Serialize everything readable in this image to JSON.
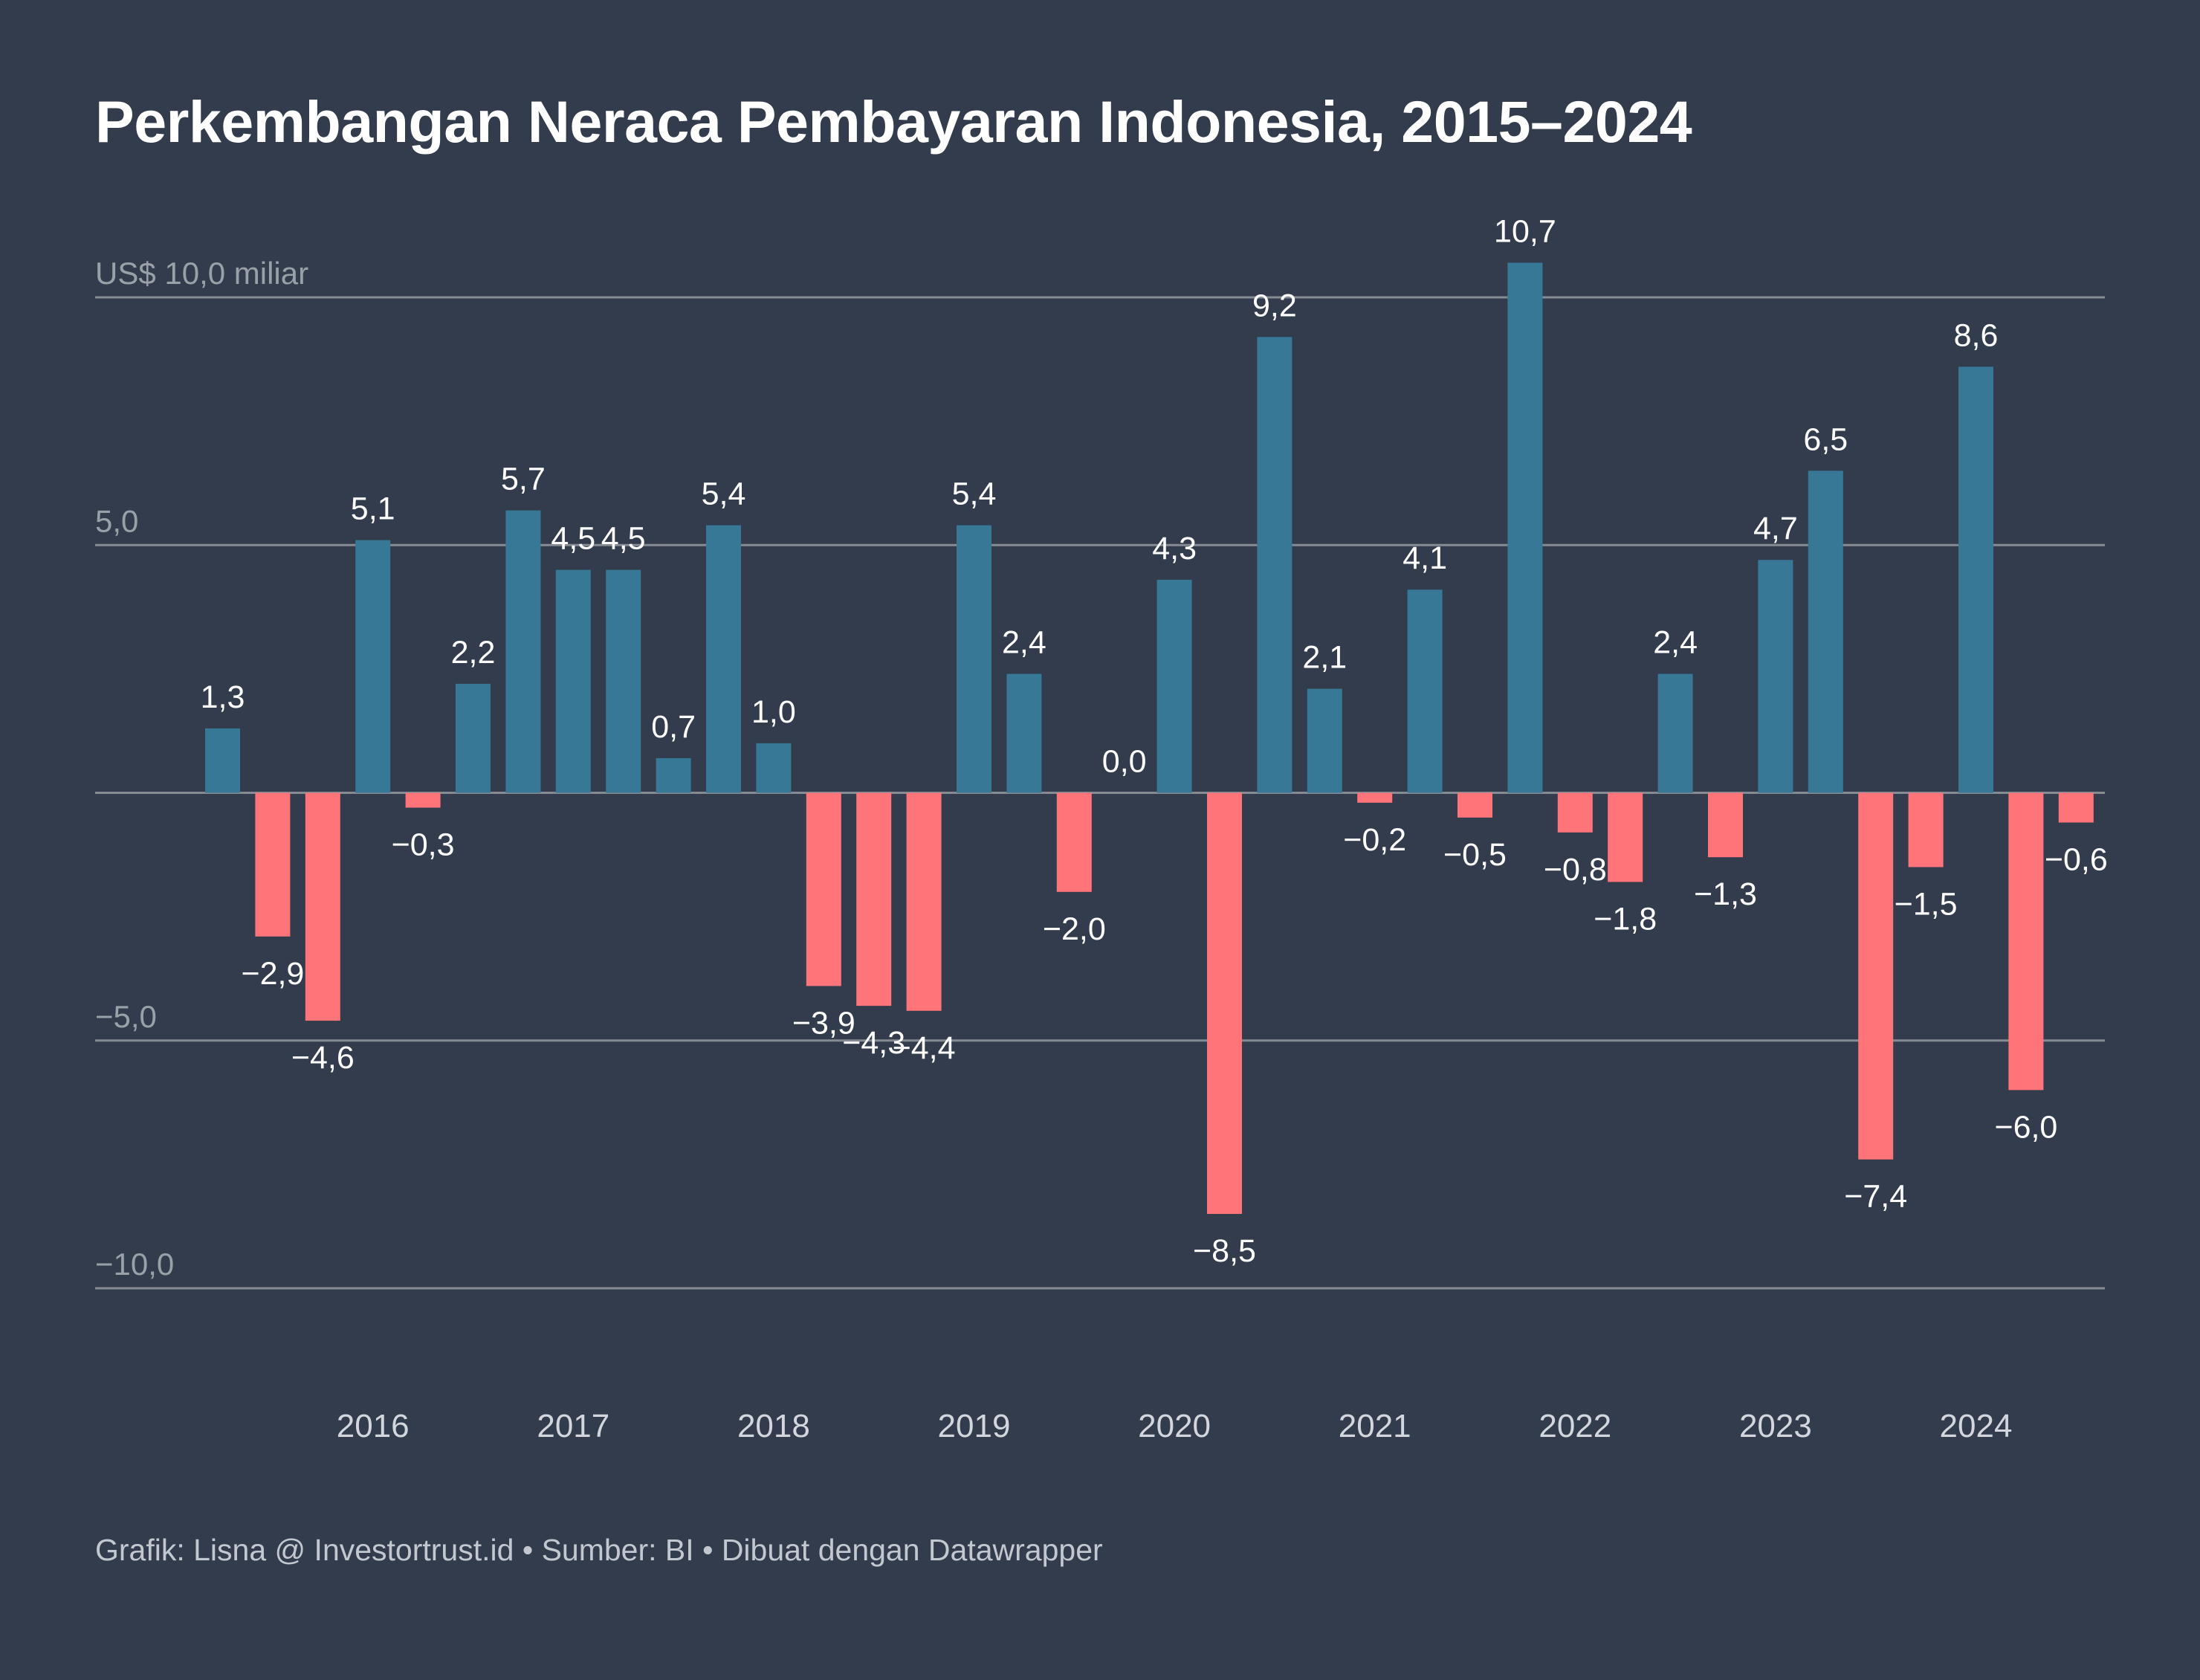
{
  "title": "Perkembangan Neraca Pembayaran Indonesia, 2015–2024",
  "footer": {
    "credit": "Grafik: Lisna @ Investortrust.id",
    "source": "Sumber: BI",
    "tool": "Dibuat dengan Datawrapper",
    "separator": " • "
  },
  "colors": {
    "background": "#323c4d",
    "positive": "#367895",
    "negative": "#ff7479",
    "gridline": "#868b93",
    "axis_text": "#9aa0a8",
    "label_text": "#ffffff"
  },
  "chart_data": {
    "type": "bar",
    "ylim": [
      -10,
      10
    ],
    "y_ticks": [
      {
        "value": 10,
        "label": "US$ 10,0 miliar"
      },
      {
        "value": 5,
        "label": "5,0"
      },
      {
        "value": -5,
        "label": "−5,0"
      },
      {
        "value": -10,
        "label": "−10,0"
      }
    ],
    "x_tick_labels": [
      "2016",
      "2017",
      "2018",
      "2019",
      "2020",
      "2021",
      "2022",
      "2023",
      "2024"
    ],
    "grid": true,
    "values": [
      1.3,
      -2.9,
      -4.6,
      5.1,
      -0.3,
      2.2,
      5.7,
      4.5,
      4.5,
      0.7,
      5.4,
      1.0,
      -3.9,
      -4.3,
      -4.4,
      5.4,
      2.4,
      -2.0,
      0.0,
      4.3,
      -8.5,
      9.2,
      2.1,
      -0.2,
      4.1,
      -0.5,
      10.7,
      -0.8,
      -1.8,
      2.4,
      -1.3,
      4.7,
      6.5,
      -7.4,
      -1.5,
      8.6,
      -6.0,
      -0.6
    ],
    "data_labels": [
      "1,3",
      "−2,9",
      "−4,6",
      "5,1",
      "−0,3",
      "2,2",
      "5,7",
      "4,5",
      "4,5",
      "0,7",
      "5,4",
      "1,0",
      "−3,9",
      "−4,3",
      "−4,4",
      "5,4",
      "2,4",
      "−2,0",
      "0,0",
      "4,3",
      "−8,5",
      "9,2",
      "2,1",
      "−0,2",
      "4,1",
      "−0,5",
      "10,7",
      "−0,8",
      "−1,8",
      "2,4",
      "−1,3",
      "4,7",
      "6,5",
      "−7,4",
      "−1,5",
      "8,6",
      "−6,0",
      "−0,6"
    ]
  }
}
